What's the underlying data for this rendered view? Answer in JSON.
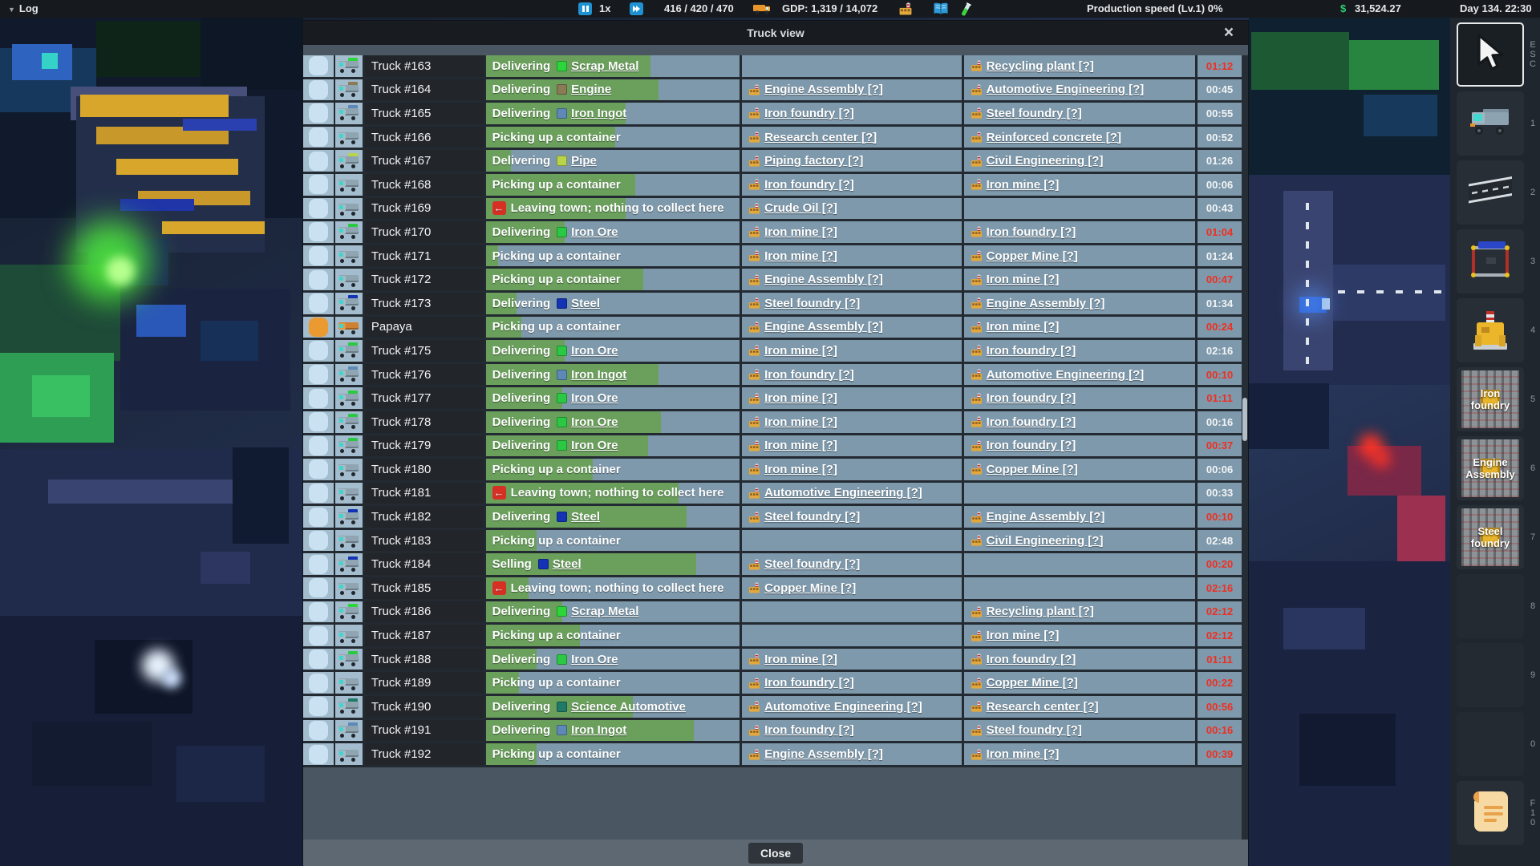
{
  "top_bar": {
    "log": "Log",
    "caret": "▼",
    "speed": "1x",
    "vehicle_counts": "416 / 420 / 470",
    "gdp": "GDP: 1,319 / 14,072",
    "production": "Production speed (Lv.1) 0%",
    "currency": "$",
    "money": "31,524.27",
    "datetime": "Day 134. 22:30"
  },
  "dialog": {
    "title": "Truck view",
    "close_glyph": "×",
    "close_button": "Close",
    "help_suffix": "[?]",
    "leaving_arrow_glyph": "←",
    "colors": {
      "late_time": "#ef2f20",
      "progress_green": "#6aa05c",
      "row_base": "#7e99ac",
      "selected_checkbox": "#ea9a31"
    },
    "table": {
      "rows": [
        {
          "name": "Truck #163",
          "status": "Delivering",
          "cargo": "Scrap Metal",
          "cargo_color": "#2bd53a",
          "progress": 0.65,
          "source": "",
          "destination": "Recycling plant",
          "time": "01:12",
          "late": true
        },
        {
          "name": "Truck #164",
          "status": "Delivering",
          "cargo": "Engine",
          "cargo_color": "#8a7a55",
          "progress": 0.68,
          "source": "Engine Assembly",
          "destination": "Automotive Engineering",
          "time": "00:45",
          "late": false
        },
        {
          "name": "Truck #165",
          "status": "Delivering",
          "cargo": "Iron Ingot",
          "cargo_color": "#5d88b7",
          "progress": 0.55,
          "source": "Iron foundry",
          "destination": "Steel foundry",
          "time": "00:55",
          "late": false
        },
        {
          "name": "Truck #166",
          "status": "Picking up a container",
          "progress": 0.51,
          "source": "Research center",
          "destination": "Reinforced concrete",
          "time": "00:52",
          "late": false
        },
        {
          "name": "Truck #167",
          "status": "Delivering",
          "cargo": "Pipe",
          "cargo_color": "#b9d44b",
          "progress": 0.1,
          "source": "Piping factory",
          "destination": "Civil Engineering",
          "time": "01:26",
          "late": false
        },
        {
          "name": "Truck #168",
          "status": "Picking up a container",
          "progress": 0.59,
          "source": "Iron foundry",
          "destination": "Iron mine",
          "time": "00:06",
          "late": false
        },
        {
          "name": "Truck #169",
          "status": "Leaving town; nothing to collect here",
          "leaving": true,
          "progress": 0.55,
          "source": "Crude Oil",
          "destination": "",
          "time": "00:43",
          "late": false
        },
        {
          "name": "Truck #170",
          "status": "Delivering",
          "cargo": "Iron Ore",
          "cargo_color": "#2bc943",
          "progress": 0.31,
          "source": "Iron mine",
          "destination": "Iron foundry",
          "time": "01:04",
          "late": true
        },
        {
          "name": "Truck #171",
          "status": "Picking up a container",
          "progress": 0.05,
          "source": "Iron mine",
          "destination": "Copper Mine",
          "time": "01:24",
          "late": false
        },
        {
          "name": "Truck #172",
          "status": "Picking up a container",
          "progress": 0.62,
          "source": "Engine Assembly",
          "destination": "Iron mine",
          "time": "00:47",
          "late": true
        },
        {
          "name": "Truck #173",
          "status": "Delivering",
          "cargo": "Steel",
          "cargo_color": "#1433b4",
          "progress": 0.12,
          "source": "Steel foundry",
          "destination": "Engine Assembly",
          "time": "01:34",
          "late": false
        },
        {
          "name": "Papaya",
          "status": "Picking up a container",
          "progress": 0.14,
          "source": "Engine Assembly",
          "destination": "Iron mine",
          "time": "00:24",
          "late": true,
          "selected": true
        },
        {
          "name": "Truck #175",
          "status": "Delivering",
          "cargo": "Iron Ore",
          "cargo_color": "#2bc943",
          "progress": 0.31,
          "source": "Iron mine",
          "destination": "Iron foundry",
          "time": "02:16",
          "late": false
        },
        {
          "name": "Truck #176",
          "status": "Delivering",
          "cargo": "Iron Ingot",
          "cargo_color": "#5d88b7",
          "progress": 0.68,
          "source": "Iron foundry",
          "destination": "Automotive Engineering",
          "time": "00:10",
          "late": true
        },
        {
          "name": "Truck #177",
          "status": "Delivering",
          "cargo": "Iron Ore",
          "cargo_color": "#2bc943",
          "progress": 0.3,
          "source": "Iron mine",
          "destination": "Iron foundry",
          "time": "01:11",
          "late": true
        },
        {
          "name": "Truck #178",
          "status": "Delivering",
          "cargo": "Iron Ore",
          "cargo_color": "#2bc943",
          "progress": 0.69,
          "source": "Iron mine",
          "destination": "Iron foundry",
          "time": "00:16",
          "late": false
        },
        {
          "name": "Truck #179",
          "status": "Delivering",
          "cargo": "Iron Ore",
          "cargo_color": "#2bc943",
          "progress": 0.64,
          "source": "Iron mine",
          "destination": "Iron foundry",
          "time": "00:37",
          "late": true
        },
        {
          "name": "Truck #180",
          "status": "Picking up a container",
          "progress": 0.42,
          "source": "Iron mine",
          "destination": "Copper Mine",
          "time": "00:06",
          "late": false
        },
        {
          "name": "Truck #181",
          "status": "Leaving town; nothing to collect here",
          "leaving": true,
          "progress": 0.76,
          "source": "Automotive Engineering",
          "destination": "",
          "time": "00:33",
          "late": false
        },
        {
          "name": "Truck #182",
          "status": "Delivering",
          "cargo": "Steel",
          "cargo_color": "#1433b4",
          "progress": 0.79,
          "source": "Steel foundry",
          "destination": "Engine Assembly",
          "time": "00:10",
          "late": true
        },
        {
          "name": "Truck #183",
          "status": "Picking up a container",
          "progress": 0.2,
          "source": "",
          "destination": "Civil Engineering",
          "time": "02:48",
          "late": false
        },
        {
          "name": "Truck #184",
          "status": "Selling",
          "cargo": "Steel",
          "cargo_color": "#1433b4",
          "progress": 0.83,
          "source": "Steel foundry",
          "destination": "",
          "time": "00:20",
          "late": true
        },
        {
          "name": "Truck #185",
          "status": "Leaving town; nothing to collect here",
          "leaving": true,
          "progress": 0.17,
          "source": "Copper Mine",
          "destination": "",
          "time": "02:16",
          "late": true
        },
        {
          "name": "Truck #186",
          "status": "Delivering",
          "cargo": "Scrap Metal",
          "cargo_color": "#2bd53a",
          "progress": 0.3,
          "source": "",
          "destination": "Recycling plant",
          "time": "02:12",
          "late": true
        },
        {
          "name": "Truck #187",
          "status": "Picking up a container",
          "progress": 0.37,
          "source": "",
          "destination": "Iron mine",
          "time": "02:12",
          "late": true
        },
        {
          "name": "Truck #188",
          "status": "Delivering",
          "cargo": "Iron Ore",
          "cargo_color": "#2bc943",
          "progress": 0.2,
          "source": "Iron mine",
          "destination": "Iron foundry",
          "time": "01:11",
          "late": true
        },
        {
          "name": "Truck #189",
          "status": "Picking up a container",
          "progress": 0.13,
          "source": "Iron foundry",
          "destination": "Copper Mine",
          "time": "00:22",
          "late": true
        },
        {
          "name": "Truck #190",
          "status": "Delivering",
          "cargo": "Science Automotive",
          "cargo_color": "#207a68",
          "progress": 0.58,
          "source": "Automotive Engineering",
          "destination": "Research center",
          "time": "00:56",
          "late": true
        },
        {
          "name": "Truck #191",
          "status": "Delivering",
          "cargo": "Iron Ingot",
          "cargo_color": "#5d88b7",
          "progress": 0.82,
          "source": "Iron foundry",
          "destination": "Steel foundry",
          "time": "00:16",
          "late": true
        },
        {
          "name": "Truck #192",
          "status": "Picking up a container",
          "progress": 0.2,
          "source": "Engine Assembly",
          "destination": "Iron mine",
          "time": "00:39",
          "late": true
        }
      ]
    }
  },
  "sidebar": {
    "items": [
      {
        "icon": "cursor",
        "name": "select-tool",
        "hotkey": "ESC",
        "selected": true
      },
      {
        "icon": "truck",
        "name": "vehicle-tool",
        "hotkey": "1"
      },
      {
        "icon": "road",
        "name": "road-tool",
        "hotkey": "2"
      },
      {
        "icon": "crane",
        "name": "construction-tool",
        "hotkey": "3"
      },
      {
        "icon": "machine",
        "name": "machine-tool",
        "hotkey": "4"
      },
      {
        "icon": "blueprint",
        "name": "blueprint-iron-foundry",
        "hotkey": "5",
        "label": "Iron foundry"
      },
      {
        "icon": "blueprint",
        "name": "blueprint-engine-assembly",
        "hotkey": "6",
        "label": "Engine Assembly"
      },
      {
        "icon": "blueprint",
        "name": "blueprint-steel-foundry",
        "hotkey": "7",
        "label": "Steel foundry"
      },
      {
        "icon": "empty",
        "name": "empty-slot-8",
        "hotkey": "8"
      },
      {
        "icon": "empty",
        "name": "empty-slot-9",
        "hotkey": "9"
      },
      {
        "icon": "empty",
        "name": "empty-slot-0",
        "hotkey": "0"
      },
      {
        "icon": "scroll",
        "name": "contracts-log",
        "hotkey": "F10"
      }
    ]
  }
}
